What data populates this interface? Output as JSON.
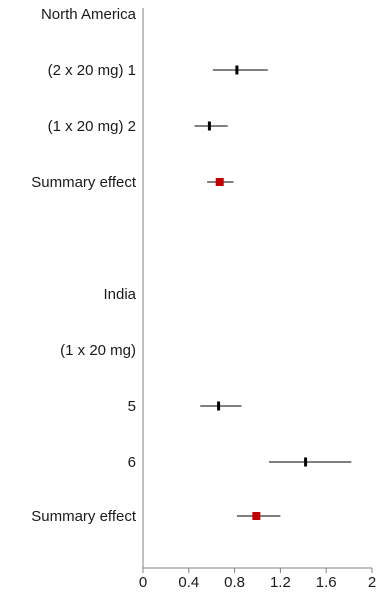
{
  "chart_data": {
    "type": "forest",
    "rows": [
      {
        "label": "North America",
        "point": null
      },
      {
        "label": "(2 x 20 mg) 1",
        "point": 0.82,
        "ci": [
          0.61,
          1.09
        ],
        "marker": "tick"
      },
      {
        "label": "(1 x 20 mg) 2",
        "point": 0.58,
        "ci": [
          0.45,
          0.74
        ],
        "marker": "tick"
      },
      {
        "label": "Summary effect",
        "point": 0.67,
        "ci": [
          0.56,
          0.79
        ],
        "marker": "square"
      },
      {
        "label": "",
        "point": null
      },
      {
        "label": "India",
        "point": null
      },
      {
        "label": "(1 x 20 mg)",
        "point": null
      },
      {
        "label": "5",
        "point": 0.66,
        "ci": [
          0.5,
          0.86
        ],
        "marker": "tick"
      },
      {
        "label": "6",
        "point": 1.42,
        "ci": [
          1.1,
          1.82
        ],
        "marker": "square-skip",
        "skip": false
      },
      {
        "label": "Summary effect",
        "point": 0.99,
        "ci": [
          0.82,
          1.2
        ],
        "marker": "square"
      }
    ],
    "x_ticks": [
      "0",
      "0.4",
      "0.8",
      "1.2",
      "1.6",
      "2"
    ],
    "xlim": [
      0,
      2
    ],
    "grid": false,
    "colors": {
      "study_marker": "#000000",
      "summary_marker": "#c00000",
      "ci_line": "#000000",
      "axis": "#808080"
    }
  }
}
